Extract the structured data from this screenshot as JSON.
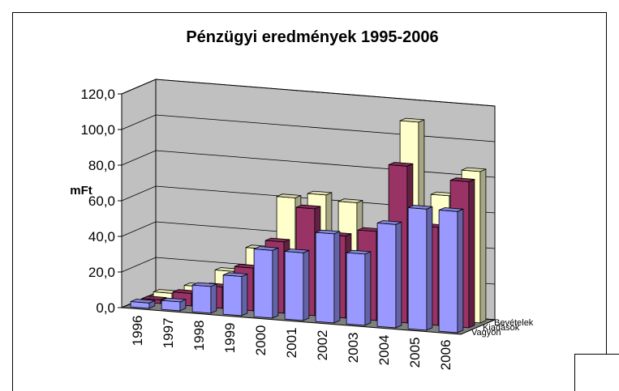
{
  "chart_data": {
    "type": "bar3d",
    "title": "Pénzügyi eredmények 1995-2006",
    "y_label": "mFt",
    "categories": [
      "1996",
      "1997",
      "1998",
      "1999",
      "2000",
      "2001",
      "2002",
      "2003",
      "2004",
      "2005",
      "2006"
    ],
    "series": [
      {
        "name": "Bevételek",
        "color": "#ffffcc",
        "values": [
          3,
          8,
          18,
          32,
          62,
          65,
          62,
          45,
          110,
          70,
          85
        ]
      },
      {
        "name": "Kiadások",
        "color": "#993366",
        "values": [
          2,
          7,
          12,
          24,
          40,
          60,
          46,
          50,
          88,
          55,
          82
        ]
      },
      {
        "name": "Vagyon",
        "color": "#9999ff",
        "values": [
          3,
          5,
          15,
          22,
          38,
          38,
          50,
          40,
          58,
          68,
          68
        ]
      }
    ],
    "ylim": [
      0,
      120
    ],
    "yticks": [
      {
        "value": 0,
        "label": "0,0"
      },
      {
        "value": 20,
        "label": "20,0"
      },
      {
        "value": 40,
        "label": "40,0"
      },
      {
        "value": 60,
        "label": "60,0"
      },
      {
        "value": 80,
        "label": "80,0"
      },
      {
        "value": 100,
        "label": "100,0"
      },
      {
        "value": 120,
        "label": "120,0"
      }
    ],
    "grid": true
  }
}
